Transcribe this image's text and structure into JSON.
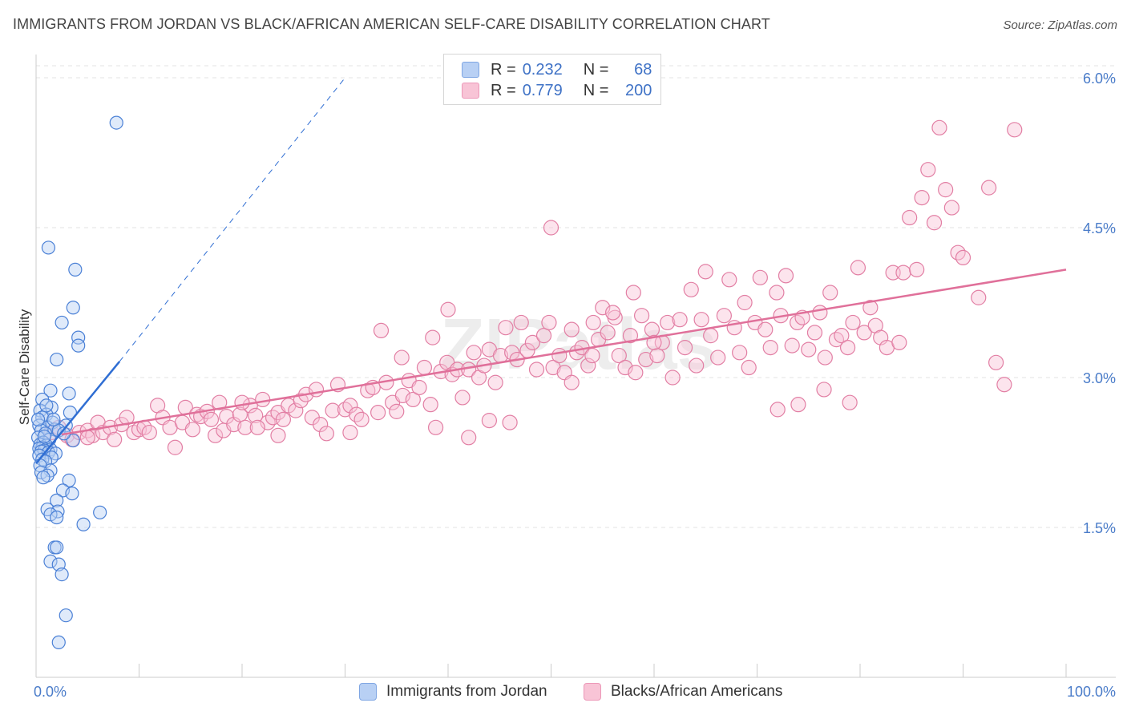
{
  "title": "IMMIGRANTS FROM JORDAN VS BLACK/AFRICAN AMERICAN SELF-CARE DISABILITY CORRELATION CHART",
  "source": "Source: ZipAtlas.com",
  "watermark": "ZIPatlas",
  "colors": {
    "blue": "#4a80d6",
    "blue_fill": "#b8d0f4",
    "blue_line": "#2f6ed3",
    "pink": "#e27fa4",
    "pink_fill": "#f8c4d6",
    "pink_line": "#e0709a",
    "tick": "#4a7cc9",
    "grid": "#e3e3e3"
  },
  "legend": {
    "rows": [
      {
        "r_label": "R =",
        "r_value": "0.232",
        "n_label": "N =",
        "n_value": "68"
      },
      {
        "r_label": "R =",
        "r_value": "0.779",
        "n_label": "N =",
        "n_value": "200"
      }
    ]
  },
  "bottom_legend": {
    "jordan": "Immigrants from Jordan",
    "black": "Blacks/African Americans"
  },
  "chart_data": {
    "type": "scatter",
    "ylabel": "Self-Care Disability",
    "xlim": [
      0,
      100
    ],
    "ylim": [
      0,
      6.3
    ],
    "x_ticks": [
      "0.0%",
      "100.0%"
    ],
    "y_ticks": [
      {
        "value": 1.5,
        "label": "1.5%"
      },
      {
        "value": 3.0,
        "label": "3.0%"
      },
      {
        "value": 4.5,
        "label": "4.5%"
      },
      {
        "value": 6.0,
        "label": "6.0%"
      }
    ],
    "grid": true,
    "series": [
      {
        "name": "Immigrants from Jordan",
        "color": "blue",
        "trend": {
          "x": [
            0,
            8.1
          ],
          "y": [
            2.14,
            3.16
          ],
          "dashed_to": {
            "x": 30,
            "y": 6.0
          }
        },
        "points": [
          [
            7.8,
            5.55
          ],
          [
            1.2,
            4.3
          ],
          [
            3.8,
            4.08
          ],
          [
            3.6,
            3.7
          ],
          [
            2.5,
            3.55
          ],
          [
            4.1,
            3.4
          ],
          [
            4.1,
            3.32
          ],
          [
            2.0,
            3.18
          ],
          [
            1.4,
            2.87
          ],
          [
            3.2,
            2.84
          ],
          [
            0.6,
            2.78
          ],
          [
            1.5,
            2.7
          ],
          [
            0.4,
            2.67
          ],
          [
            1.0,
            2.63
          ],
          [
            3.3,
            2.65
          ],
          [
            0.6,
            2.6
          ],
          [
            1.6,
            2.55
          ],
          [
            2.9,
            2.52
          ],
          [
            0.3,
            2.52
          ],
          [
            1.1,
            2.5
          ],
          [
            1.8,
            2.48
          ],
          [
            0.5,
            2.47
          ],
          [
            2.2,
            2.47
          ],
          [
            0.9,
            2.44
          ],
          [
            0.2,
            2.4
          ],
          [
            1.3,
            2.38
          ],
          [
            3.6,
            2.37
          ],
          [
            0.7,
            2.35
          ],
          [
            0.4,
            2.33
          ],
          [
            1.0,
            2.32
          ],
          [
            0.6,
            2.3
          ],
          [
            0.3,
            2.29
          ],
          [
            1.4,
            2.28
          ],
          [
            0.8,
            2.27
          ],
          [
            0.5,
            2.26
          ],
          [
            1.2,
            2.25
          ],
          [
            1.9,
            2.24
          ],
          [
            0.3,
            2.22
          ],
          [
            1.5,
            2.2
          ],
          [
            0.6,
            2.18
          ],
          [
            0.9,
            2.16
          ],
          [
            0.4,
            2.12
          ],
          [
            1.4,
            2.07
          ],
          [
            0.5,
            2.05
          ],
          [
            1.1,
            2.02
          ],
          [
            3.2,
            1.97
          ],
          [
            2.6,
            1.87
          ],
          [
            3.5,
            1.84
          ],
          [
            2.0,
            1.77
          ],
          [
            1.1,
            1.68
          ],
          [
            2.1,
            1.66
          ],
          [
            6.2,
            1.65
          ],
          [
            1.4,
            1.63
          ],
          [
            2.0,
            1.6
          ],
          [
            4.6,
            1.53
          ],
          [
            1.8,
            1.3
          ],
          [
            2.0,
            1.3
          ],
          [
            1.4,
            1.16
          ],
          [
            2.2,
            1.13
          ],
          [
            2.5,
            1.03
          ],
          [
            2.9,
            0.62
          ],
          [
            2.2,
            0.35
          ],
          [
            0.7,
            2.0
          ],
          [
            1.7,
            2.58
          ],
          [
            2.7,
            2.44
          ],
          [
            0.2,
            2.58
          ],
          [
            1.0,
            2.72
          ],
          [
            0.8,
            2.41
          ]
        ]
      },
      {
        "name": "Blacks/African Americans",
        "color": "pink",
        "trend": {
          "x": [
            2.5,
            100
          ],
          "y": [
            2.43,
            4.08
          ]
        },
        "points": [
          [
            1.5,
            2.45
          ],
          [
            2.2,
            2.5
          ],
          [
            3.0,
            2.42
          ],
          [
            3.5,
            2.38
          ],
          [
            4.2,
            2.45
          ],
          [
            5.0,
            2.47
          ],
          [
            5.5,
            2.42
          ],
          [
            6.0,
            2.55
          ],
          [
            6.5,
            2.45
          ],
          [
            7.2,
            2.5
          ],
          [
            7.6,
            2.38
          ],
          [
            8.3,
            2.53
          ],
          [
            8.8,
            2.6
          ],
          [
            9.5,
            2.45
          ],
          [
            10.0,
            2.48
          ],
          [
            10.5,
            2.5
          ],
          [
            11.0,
            2.45
          ],
          [
            11.8,
            2.72
          ],
          [
            12.3,
            2.6
          ],
          [
            13.0,
            2.5
          ],
          [
            13.5,
            2.3
          ],
          [
            14.2,
            2.55
          ],
          [
            14.5,
            2.7
          ],
          [
            15.2,
            2.48
          ],
          [
            15.6,
            2.63
          ],
          [
            16.0,
            2.61
          ],
          [
            16.6,
            2.66
          ],
          [
            17.0,
            2.58
          ],
          [
            17.4,
            2.42
          ],
          [
            17.8,
            2.75
          ],
          [
            18.2,
            2.47
          ],
          [
            18.5,
            2.61
          ],
          [
            19.2,
            2.53
          ],
          [
            19.8,
            2.63
          ],
          [
            20.3,
            2.5
          ],
          [
            20.8,
            2.72
          ],
          [
            21.3,
            2.62
          ],
          [
            22.0,
            2.78
          ],
          [
            22.5,
            2.55
          ],
          [
            23.0,
            2.6
          ],
          [
            23.5,
            2.65
          ],
          [
            24.0,
            2.58
          ],
          [
            24.5,
            2.72
          ],
          [
            25.2,
            2.67
          ],
          [
            25.7,
            2.77
          ],
          [
            26.2,
            2.83
          ],
          [
            26.8,
            2.6
          ],
          [
            27.2,
            2.88
          ],
          [
            27.6,
            2.53
          ],
          [
            28.2,
            2.44
          ],
          [
            28.8,
            2.67
          ],
          [
            29.3,
            2.93
          ],
          [
            30.0,
            2.68
          ],
          [
            30.5,
            2.72
          ],
          [
            31.1,
            2.63
          ],
          [
            31.6,
            2.58
          ],
          [
            32.2,
            2.87
          ],
          [
            32.7,
            2.9
          ],
          [
            33.2,
            2.65
          ],
          [
            34.0,
            2.95
          ],
          [
            34.6,
            2.75
          ],
          [
            35.0,
            2.66
          ],
          [
            35.6,
            2.82
          ],
          [
            36.2,
            2.97
          ],
          [
            36.6,
            2.78
          ],
          [
            37.2,
            2.9
          ],
          [
            37.7,
            3.1
          ],
          [
            38.3,
            2.73
          ],
          [
            38.8,
            2.5
          ],
          [
            39.3,
            3.06
          ],
          [
            39.9,
            3.15
          ],
          [
            40.4,
            3.03
          ],
          [
            40.9,
            3.08
          ],
          [
            41.4,
            2.8
          ],
          [
            42.0,
            3.08
          ],
          [
            42.5,
            3.25
          ],
          [
            43.0,
            3.0
          ],
          [
            43.5,
            3.12
          ],
          [
            44.0,
            3.28
          ],
          [
            44.6,
            2.95
          ],
          [
            45.1,
            3.22
          ],
          [
            45.6,
            3.5
          ],
          [
            46.2,
            3.25
          ],
          [
            46.7,
            3.18
          ],
          [
            47.1,
            3.55
          ],
          [
            47.7,
            3.27
          ],
          [
            48.2,
            3.35
          ],
          [
            48.6,
            3.08
          ],
          [
            49.3,
            3.42
          ],
          [
            49.8,
            3.55
          ],
          [
            50.2,
            3.1
          ],
          [
            50.8,
            3.22
          ],
          [
            51.3,
            3.05
          ],
          [
            52.0,
            3.48
          ],
          [
            52.5,
            3.25
          ],
          [
            53.0,
            3.3
          ],
          [
            53.6,
            3.12
          ],
          [
            54.1,
            3.55
          ],
          [
            54.6,
            3.38
          ],
          [
            55.0,
            3.7
          ],
          [
            55.5,
            3.45
          ],
          [
            56.2,
            3.6
          ],
          [
            56.6,
            3.22
          ],
          [
            57.2,
            3.1
          ],
          [
            57.7,
            3.42
          ],
          [
            58.2,
            3.05
          ],
          [
            58.8,
            3.62
          ],
          [
            59.2,
            3.18
          ],
          [
            59.8,
            3.48
          ],
          [
            60.3,
            3.22
          ],
          [
            60.8,
            3.35
          ],
          [
            61.3,
            3.55
          ],
          [
            61.8,
            3.0
          ],
          [
            62.5,
            3.58
          ],
          [
            63.0,
            3.3
          ],
          [
            63.6,
            3.88
          ],
          [
            64.1,
            3.12
          ],
          [
            64.6,
            3.58
          ],
          [
            65.0,
            4.06
          ],
          [
            65.5,
            3.42
          ],
          [
            66.2,
            3.2
          ],
          [
            66.8,
            3.62
          ],
          [
            67.3,
            3.98
          ],
          [
            67.8,
            3.5
          ],
          [
            68.3,
            3.25
          ],
          [
            68.8,
            3.75
          ],
          [
            69.2,
            3.1
          ],
          [
            69.8,
            3.55
          ],
          [
            70.3,
            4.0
          ],
          [
            70.8,
            3.48
          ],
          [
            71.3,
            3.3
          ],
          [
            71.9,
            3.85
          ],
          [
            72.3,
            3.62
          ],
          [
            72.8,
            4.02
          ],
          [
            73.4,
            3.32
          ],
          [
            73.9,
            3.55
          ],
          [
            74.4,
            3.6
          ],
          [
            75.0,
            3.28
          ],
          [
            75.6,
            3.45
          ],
          [
            76.1,
            3.65
          ],
          [
            76.6,
            3.2
          ],
          [
            77.1,
            3.85
          ],
          [
            77.7,
            3.38
          ],
          [
            78.2,
            3.42
          ],
          [
            78.8,
            3.3
          ],
          [
            79.3,
            3.55
          ],
          [
            79.8,
            4.1
          ],
          [
            80.4,
            3.45
          ],
          [
            81.0,
            3.7
          ],
          [
            81.5,
            3.52
          ],
          [
            82.0,
            3.4
          ],
          [
            82.6,
            3.3
          ],
          [
            83.2,
            4.05
          ],
          [
            83.8,
            3.35
          ],
          [
            84.2,
            4.05
          ],
          [
            84.8,
            4.6
          ],
          [
            85.5,
            4.08
          ],
          [
            86.0,
            4.8
          ],
          [
            86.6,
            5.08
          ],
          [
            87.2,
            4.55
          ],
          [
            87.7,
            5.5
          ],
          [
            88.3,
            4.88
          ],
          [
            88.9,
            4.7
          ],
          [
            89.5,
            4.25
          ],
          [
            90.0,
            4.2
          ],
          [
            91.5,
            3.8
          ],
          [
            92.5,
            4.9
          ],
          [
            93.2,
            3.15
          ],
          [
            94.0,
            2.93
          ],
          [
            95.0,
            5.48
          ],
          [
            79.0,
            2.75
          ],
          [
            76.5,
            2.88
          ],
          [
            74.0,
            2.73
          ],
          [
            72.0,
            2.68
          ],
          [
            60.0,
            3.35
          ],
          [
            58.0,
            3.85
          ],
          [
            56.0,
            3.65
          ],
          [
            54.0,
            3.22
          ],
          [
            52.0,
            2.95
          ],
          [
            50.0,
            4.5
          ],
          [
            46.0,
            2.55
          ],
          [
            44.0,
            2.57
          ],
          [
            42.0,
            2.4
          ],
          [
            40.0,
            3.68
          ],
          [
            38.5,
            3.4
          ],
          [
            35.5,
            3.2
          ],
          [
            33.5,
            3.47
          ],
          [
            30.5,
            2.45
          ],
          [
            23.5,
            2.42
          ],
          [
            21.5,
            2.5
          ],
          [
            20.0,
            2.75
          ],
          [
            5.0,
            2.4
          ]
        ]
      }
    ]
  }
}
